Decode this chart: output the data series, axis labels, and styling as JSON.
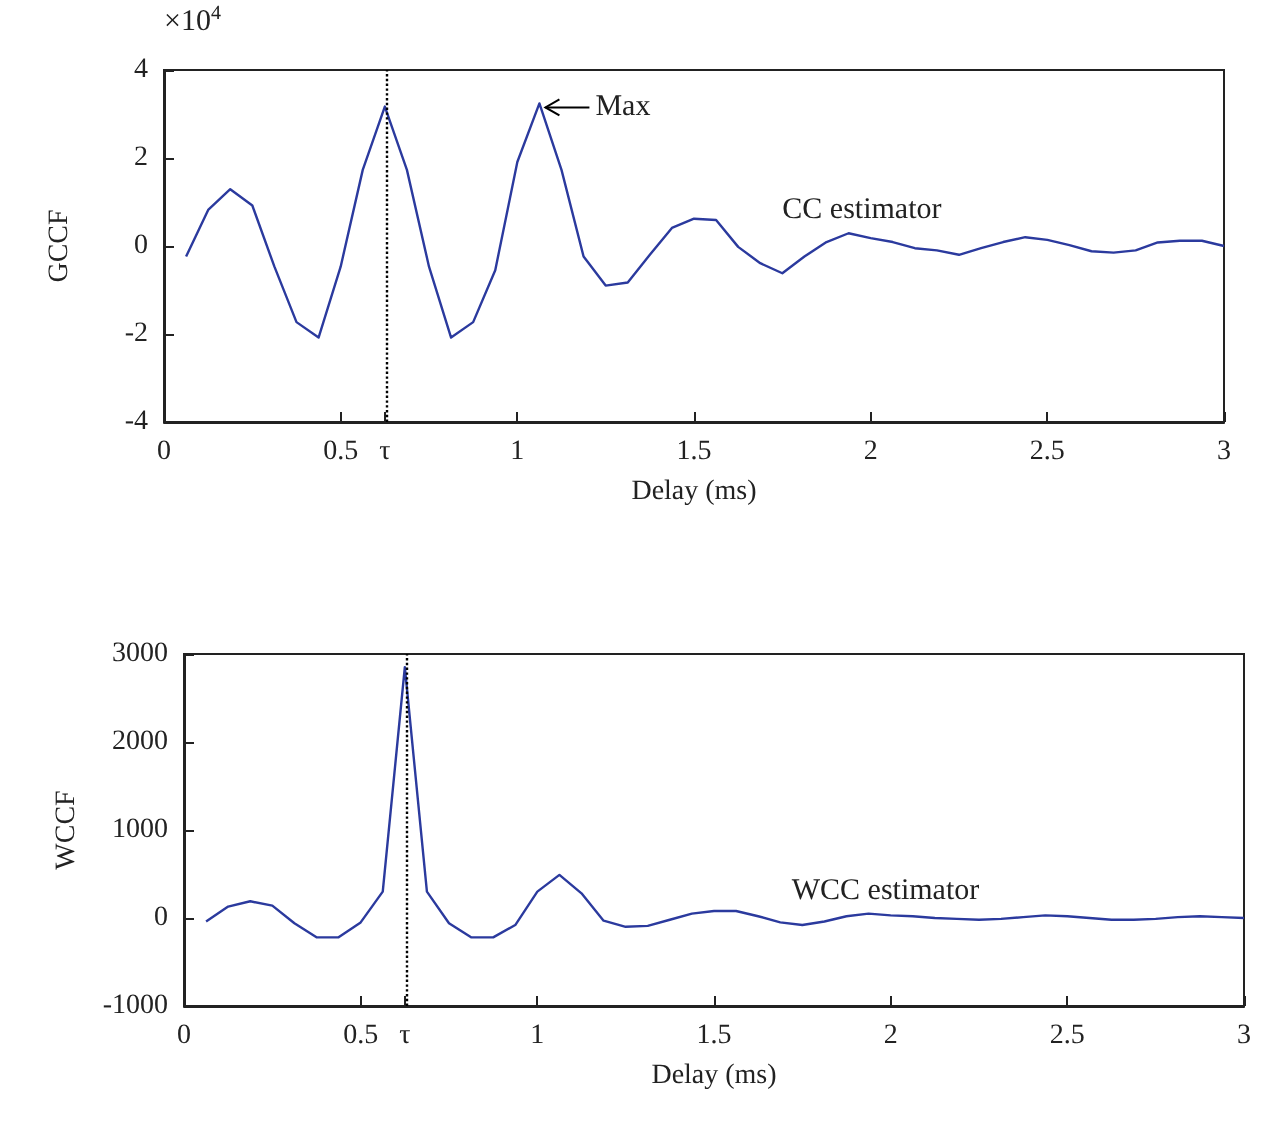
{
  "chart_data": [
    {
      "type": "line",
      "xlabel": "Delay (ms)",
      "ylabel": "GCCF",
      "annotations": [
        "×10$^{4}$",
        {
          "text": "Max",
          "x": 1.0625,
          "y": 3.24
        },
        "CC estimator"
      ],
      "series": [
        {
          "color": "#2b3a9e",
          "x": [
            0.0625,
            0.125,
            0.1875,
            0.25,
            0.3125,
            0.375,
            0.4375,
            0.5,
            0.5625,
            0.625,
            0.6875,
            0.75,
            0.8125,
            0.875,
            0.9375,
            1.0,
            1.0625,
            1.125,
            1.1875,
            1.25,
            1.3125,
            1.375,
            1.4375,
            1.5,
            1.5625,
            1.625,
            1.6875,
            1.75,
            1.8125,
            1.875,
            1.9375,
            2.0,
            2.0625,
            2.125,
            2.1875,
            2.25,
            2.3125,
            2.375,
            2.4375,
            2.5,
            2.5625,
            2.625,
            2.6875,
            2.75,
            2.8125,
            2.875,
            2.9375,
            3.0
          ],
          "values": [
            -0.24,
            0.82,
            1.29,
            0.92,
            -0.47,
            -1.73,
            -2.08,
            -0.47,
            1.73,
            3.17,
            1.73,
            -0.47,
            -2.08,
            -1.73,
            -0.55,
            1.91,
            3.24,
            1.73,
            -0.24,
            -0.9,
            -0.83,
            -0.2,
            0.41,
            0.62,
            0.59,
            -0.02,
            -0.39,
            -0.62,
            -0.24,
            0.09,
            0.29,
            0.18,
            0.09,
            -0.05,
            -0.1,
            -0.2,
            -0.05,
            0.09,
            0.2,
            0.14,
            0.02,
            -0.12,
            -0.15,
            -0.1,
            0.08,
            0.12,
            0.12,
            0.0
          ]
        }
      ],
      "xlim": [
        0,
        3
      ],
      "xticks": [
        0,
        0.5,
        {
          "value": 0.625,
          "label": "τ"
        },
        1,
        1.5,
        2,
        2.5,
        3
      ],
      "ylim": [
        -4,
        4
      ],
      "yticks": [
        -4,
        -2,
        0,
        2,
        4
      ],
      "ref_lines": [
        {
          "axis": "x",
          "value": 0.625,
          "label": null,
          "color": "#000000",
          "line_style": "dotted"
        }
      ],
      "grid": false,
      "marker": "none",
      "line_style": "solid"
    },
    {
      "type": "line",
      "xlabel": "Delay (ms)",
      "ylabel": "WCCF",
      "annotations": [
        "WCC estimator"
      ],
      "series": [
        {
          "color": "#2b3a9e",
          "x": [
            0.0625,
            0.125,
            0.1875,
            0.25,
            0.3125,
            0.375,
            0.4375,
            0.5,
            0.5625,
            0.625,
            0.6875,
            0.75,
            0.8125,
            0.875,
            0.9375,
            1.0,
            1.0625,
            1.125,
            1.1875,
            1.25,
            1.3125,
            1.375,
            1.4375,
            1.5,
            1.5625,
            1.625,
            1.6875,
            1.75,
            1.8125,
            1.875,
            1.9375,
            2.0,
            2.0625,
            2.125,
            2.1875,
            2.25,
            2.3125,
            2.375,
            2.4375,
            2.5,
            2.5625,
            2.625,
            2.6875,
            2.75,
            2.8125,
            2.875,
            2.9375,
            3.0
          ],
          "values": [
            -40,
            130,
            190,
            140,
            -60,
            -220,
            -220,
            -50,
            300,
            2850,
            300,
            -60,
            -220,
            -220,
            -80,
            300,
            490,
            280,
            -30,
            -100,
            -90,
            -20,
            50,
            80,
            80,
            20,
            -50,
            -80,
            -40,
            20,
            50,
            30,
            20,
            0,
            -10,
            -20,
            -10,
            10,
            30,
            20,
            0,
            -20,
            -20,
            -10,
            10,
            20,
            10,
            0
          ]
        }
      ],
      "xlim": [
        0,
        3
      ],
      "xticks": [
        0,
        0.5,
        {
          "value": 0.625,
          "label": "τ"
        },
        1,
        1.5,
        2,
        2.5,
        3
      ],
      "ylim": [
        -1000,
        3000
      ],
      "yticks": [
        -1000,
        0,
        1000,
        2000,
        3000
      ],
      "ref_lines": [
        {
          "axis": "x",
          "value": 0.625,
          "label": null,
          "color": "#000000",
          "line_style": "dotted"
        }
      ],
      "grid": false,
      "marker": "none",
      "line_style": "solid"
    }
  ]
}
